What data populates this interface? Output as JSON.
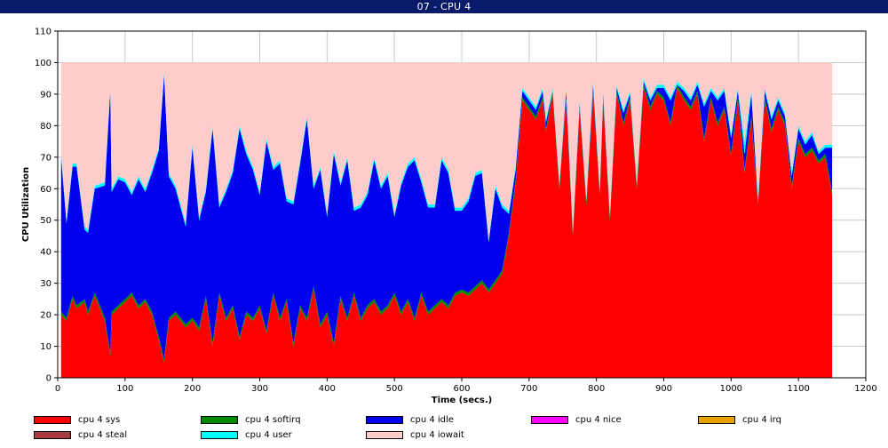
{
  "window": {
    "title": "07 - CPU 4"
  },
  "chart_data": {
    "type": "area",
    "stacked": true,
    "xlabel": "Time (secs.)",
    "ylabel": "CPU Utilization",
    "xlim": [
      0,
      1200
    ],
    "ylim": [
      0,
      110
    ],
    "xticks": [
      0,
      100,
      200,
      300,
      400,
      500,
      600,
      700,
      800,
      900,
      1000,
      1100,
      1200
    ],
    "yticks": [
      0,
      10,
      20,
      30,
      40,
      50,
      60,
      70,
      80,
      90,
      100,
      110
    ],
    "grid": true,
    "legend_position": "bottom",
    "x": [
      5,
      13,
      22,
      28,
      40,
      45,
      55,
      70,
      78,
      80,
      90,
      100,
      110,
      120,
      130,
      140,
      150,
      158,
      165,
      175,
      190,
      200,
      210,
      220,
      230,
      240,
      250,
      260,
      270,
      280,
      290,
      300,
      310,
      320,
      330,
      340,
      350,
      360,
      370,
      380,
      390,
      400,
      410,
      420,
      430,
      440,
      450,
      460,
      470,
      480,
      490,
      500,
      510,
      520,
      530,
      540,
      550,
      560,
      570,
      580,
      590,
      600,
      610,
      620,
      630,
      640,
      650,
      660,
      670,
      680,
      690,
      700,
      710,
      720,
      725,
      735,
      745,
      755,
      765,
      775,
      785,
      795,
      805,
      810,
      820,
      830,
      840,
      850,
      860,
      870,
      880,
      890,
      900,
      910,
      920,
      930,
      940,
      950,
      960,
      970,
      980,
      990,
      1000,
      1010,
      1020,
      1030,
      1040,
      1050,
      1060,
      1070,
      1080,
      1090,
      1100,
      1110,
      1120,
      1130,
      1140,
      1150
    ],
    "series": [
      {
        "name": "cpu 4 sys",
        "color": "#ff0000",
        "values": [
          20,
          18,
          25,
          22,
          24,
          20,
          26,
          18,
          7,
          20,
          22,
          24,
          26,
          22,
          24,
          20,
          12,
          5,
          18,
          20,
          16,
          18,
          15,
          25,
          10,
          26,
          18,
          22,
          12,
          20,
          18,
          22,
          14,
          26,
          18,
          24,
          10,
          22,
          18,
          28,
          16,
          20,
          10,
          25,
          18,
          26,
          18,
          22,
          24,
          20,
          22,
          26,
          20,
          24,
          18,
          26,
          20,
          22,
          24,
          22,
          26,
          27,
          26,
          28,
          30,
          27,
          30,
          33,
          45,
          62,
          88,
          85,
          82,
          88,
          78,
          90,
          60,
          88,
          45,
          85,
          55,
          90,
          58,
          88,
          50,
          90,
          80,
          88,
          60,
          92,
          85,
          90,
          88,
          80,
          92,
          88,
          85,
          90,
          75,
          88,
          80,
          85,
          70,
          88,
          65,
          82,
          55,
          88,
          78,
          85,
          80,
          60,
          75,
          70,
          72,
          68,
          70,
          58
        ]
      },
      {
        "name": "cpu 4 softirq",
        "color": "#008800",
        "values": [
          1,
          1,
          1,
          1,
          1,
          1,
          1,
          1,
          1,
          1,
          1,
          1,
          1,
          1,
          1,
          1,
          1,
          1,
          1,
          1,
          1,
          1,
          1,
          1,
          1,
          1,
          1,
          1,
          1,
          1,
          1,
          1,
          1,
          1,
          1,
          1,
          1,
          1,
          1,
          1,
          1,
          1,
          1,
          1,
          1,
          1,
          1,
          1,
          1,
          1,
          1,
          1,
          1,
          1,
          1,
          1,
          1,
          1,
          1,
          1,
          1,
          1,
          1,
          1,
          1,
          1,
          1,
          1,
          1,
          1,
          1,
          1,
          1,
          1,
          1,
          1,
          1,
          1,
          1,
          1,
          1,
          1,
          1,
          1,
          1,
          1,
          1,
          1,
          1,
          1,
          1,
          1,
          1,
          1,
          1,
          1,
          1,
          1,
          1,
          1,
          1,
          1,
          1,
          1,
          1,
          1,
          1,
          1,
          1,
          1,
          1,
          1,
          1,
          1,
          1,
          1,
          1,
          1
        ]
      },
      {
        "name": "cpu 4 idle",
        "color": "#0000ee",
        "values": [
          49,
          30,
          41,
          44,
          22,
          25,
          33,
          42,
          83,
          38,
          40,
          37,
          31,
          40,
          34,
          44,
          59,
          90,
          45,
          39,
          31,
          54,
          34,
          33,
          68,
          27,
          40,
          42,
          66,
          50,
          47,
          35,
          60,
          39,
          49,
          31,
          44,
          45,
          63,
          31,
          49,
          30,
          60,
          35,
          50,
          26,
          35,
          35,
          44,
          39,
          41,
          24,
          40,
          42,
          50,
          35,
          33,
          31,
          44,
          42,
          26,
          25,
          29,
          35,
          34,
          15,
          29,
          20,
          6,
          3,
          2,
          2,
          2,
          2,
          2,
          0,
          0,
          2,
          0,
          1,
          0,
          2,
          0,
          1,
          0,
          1,
          3,
          1,
          0,
          1,
          2,
          1,
          3,
          7,
          0,
          2,
          2,
          2,
          10,
          2,
          7,
          5,
          5,
          2,
          5,
          7,
          0,
          2,
          3,
          2,
          2,
          3,
          3,
          3,
          4,
          2,
          2,
          14
        ]
      },
      {
        "name": "cpu 4 nice",
        "color": "#ff00ff",
        "values": [
          0,
          0,
          0,
          0,
          0,
          0,
          0,
          0,
          0,
          0,
          0,
          0,
          0,
          0,
          0,
          0,
          0,
          0,
          0,
          0,
          0,
          0,
          0,
          0,
          0,
          0,
          0,
          0,
          0,
          0,
          0,
          0,
          0,
          0,
          0,
          0,
          0,
          0,
          0,
          0,
          0,
          0,
          0,
          0,
          0,
          0,
          0,
          0,
          0,
          0,
          0,
          0,
          0,
          0,
          0,
          0,
          0,
          0,
          0,
          0,
          0,
          0,
          0,
          0,
          0,
          0,
          0,
          0,
          0,
          0,
          0,
          0,
          0,
          0,
          0,
          0,
          0,
          0,
          0,
          0,
          0,
          0,
          0,
          0,
          0,
          0,
          0,
          0,
          0,
          0,
          0,
          0,
          0,
          0,
          0,
          0,
          0,
          0,
          0,
          0,
          0,
          0,
          0,
          0,
          0,
          0,
          0,
          0,
          0,
          0,
          0,
          0,
          0,
          0,
          0,
          0,
          0,
          0
        ]
      },
      {
        "name": "cpu 4 irq",
        "color": "#e8a000",
        "values": [
          0,
          0,
          0,
          0,
          0,
          0,
          0,
          0,
          0,
          0,
          0,
          0,
          0,
          0,
          0,
          0,
          0,
          0,
          0,
          0,
          0,
          0,
          0,
          0,
          0,
          0,
          0,
          0,
          0,
          0,
          0,
          0,
          0,
          0,
          0,
          0,
          0,
          0,
          0,
          0,
          0,
          0,
          0,
          0,
          0,
          0,
          0,
          0,
          0,
          0,
          0,
          0,
          0,
          0,
          0,
          0,
          0,
          0,
          0,
          0,
          0,
          0,
          0,
          0,
          0,
          0,
          0,
          0,
          0,
          0,
          0,
          0,
          0,
          0,
          0,
          0,
          0,
          0,
          0,
          0,
          0,
          0,
          0,
          0,
          0,
          0,
          0,
          0,
          0,
          0,
          0,
          0,
          0,
          0,
          0,
          0,
          0,
          0,
          0,
          0,
          0,
          0,
          0,
          0,
          0,
          0,
          0,
          0,
          0,
          0,
          0,
          0,
          0,
          0,
          0,
          0,
          0,
          0
        ]
      },
      {
        "name": "cpu 4 steal",
        "color": "#a83c3c",
        "values": [
          0,
          0,
          0,
          0,
          0,
          0,
          0,
          0,
          0,
          0,
          0,
          0,
          0,
          0,
          0,
          0,
          0,
          0,
          0,
          0,
          0,
          0,
          0,
          0,
          0,
          0,
          0,
          0,
          0,
          0,
          0,
          0,
          0,
          0,
          0,
          0,
          0,
          0,
          0,
          0,
          0,
          0,
          0,
          0,
          0,
          0,
          0,
          0,
          0,
          0,
          0,
          0,
          0,
          0,
          0,
          0,
          0,
          0,
          0,
          0,
          0,
          0,
          0,
          0,
          0,
          0,
          0,
          0,
          0,
          0,
          0,
          0,
          0,
          0,
          0,
          0,
          0,
          0,
          0,
          0,
          0,
          0,
          0,
          0,
          0,
          0,
          0,
          0,
          0,
          0,
          0,
          0,
          0,
          0,
          0,
          0,
          0,
          0,
          0,
          0,
          0,
          0,
          0,
          0,
          0,
          0,
          0,
          0,
          0,
          0,
          0,
          0,
          0,
          0,
          0,
          0,
          0,
          0
        ]
      },
      {
        "name": "cpu 4 user",
        "color": "#00ffff",
        "values": [
          1,
          1,
          1,
          1,
          1,
          1,
          1,
          1,
          1,
          1,
          1,
          1,
          1,
          1,
          1,
          1,
          1,
          1,
          1,
          1,
          1,
          1,
          1,
          1,
          1,
          1,
          1,
          1,
          1,
          1,
          1,
          1,
          1,
          1,
          1,
          1,
          1,
          1,
          1,
          1,
          1,
          1,
          1,
          1,
          1,
          1,
          1,
          1,
          1,
          1,
          1,
          1,
          1,
          1,
          1,
          1,
          1,
          1,
          1,
          1,
          1,
          1,
          1,
          1,
          1,
          1,
          1,
          1,
          1,
          1,
          1,
          1,
          1,
          1,
          1,
          1,
          1,
          1,
          1,
          1,
          1,
          1,
          1,
          1,
          1,
          1,
          1,
          1,
          1,
          1,
          1,
          1,
          1,
          1,
          1,
          1,
          1,
          1,
          1,
          1,
          1,
          1,
          1,
          1,
          4,
          1,
          1,
          1,
          1,
          1,
          1,
          1,
          1,
          1,
          1,
          1,
          1,
          1
        ]
      },
      {
        "name": "cpu 4 iowait",
        "color": "#ffcccc",
        "values": [
          29,
          50,
          32,
          32,
          52,
          53,
          39,
          38,
          8,
          40,
          36,
          37,
          41,
          36,
          40,
          34,
          27,
          3,
          35,
          39,
          51,
          26,
          49,
          40,
          20,
          45,
          40,
          34,
          20,
          28,
          33,
          41,
          24,
          33,
          31,
          43,
          44,
          31,
          17,
          39,
          33,
          48,
          28,
          38,
          30,
          46,
          45,
          41,
          30,
          39,
          35,
          48,
          38,
          32,
          30,
          37,
          45,
          45,
          30,
          34,
          46,
          46,
          43,
          35,
          34,
          56,
          39,
          45,
          47,
          33,
          8,
          11,
          14,
          8,
          18,
          8,
          38,
          8,
          53,
          12,
          43,
          6,
          40,
          9,
          48,
          7,
          15,
          9,
          38,
          5,
          11,
          7,
          7,
          11,
          6,
          8,
          11,
          6,
          13,
          8,
          11,
          8,
          23,
          8,
          25,
          9,
          43,
          8,
          17,
          11,
          16,
          35,
          20,
          25,
          22,
          28,
          26,
          26
        ]
      }
    ]
  }
}
